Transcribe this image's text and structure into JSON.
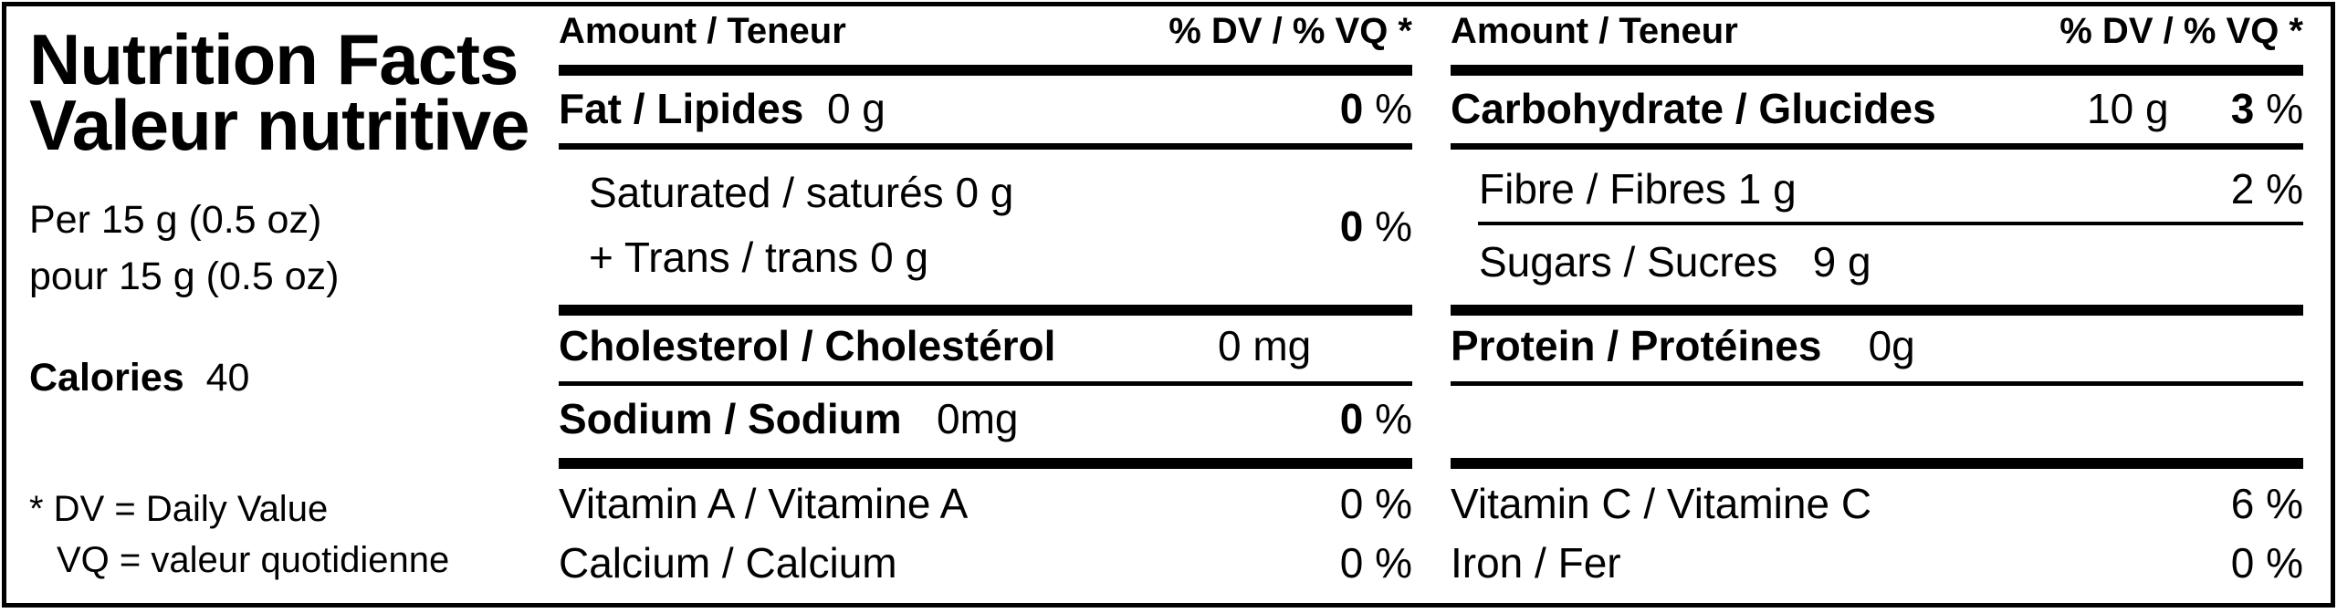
{
  "title_en": "Nutrition Facts",
  "title_fr": "Valeur nutritive",
  "serving_en": "Per 15  g  (0.5 oz)",
  "serving_fr": "pour 15  g  (0.5 oz)",
  "calories_label": "Calories",
  "calories_value": "40",
  "footnote_dv": "* DV = Daily Value",
  "footnote_vq": "VQ = valeur quotidienne",
  "percent_sign": "%",
  "left_column": {
    "header_amount": "Amount / Teneur",
    "header_dv": "% DV / % VQ *",
    "fat": {
      "label": "Fat / Lipides",
      "amount": "0 g",
      "dv": "0"
    },
    "saturated": {
      "label": "Saturated / saturés 0 g"
    },
    "trans": {
      "label": "+ Trans / trans 0 g",
      "dv": "0"
    },
    "cholesterol": {
      "label": "Cholesterol / Cholestérol",
      "amount": "0 mg"
    },
    "sodium": {
      "label": "Sodium / Sodium",
      "amount": "0mg",
      "dv": "0"
    },
    "vitamin_a": {
      "label": "Vitamin A / Vitamine A",
      "dv": "0 %"
    },
    "calcium": {
      "label": "Calcium / Calcium",
      "dv": "0 %"
    }
  },
  "right_column": {
    "header_amount": "Amount / Teneur",
    "header_dv": "% DV / % VQ *",
    "carbohydrate": {
      "label": "Carbohydrate / Glucides",
      "amount": "10 g",
      "dv": "3"
    },
    "fibre": {
      "label": "Fibre / Fibres 1 g",
      "dv": "2 %"
    },
    "sugars": {
      "label": "Sugars / Sucres",
      "amount": "9 g"
    },
    "protein": {
      "label": "Protein / Protéines",
      "amount": "0g"
    },
    "vitamin_c": {
      "label": "Vitamin C / Vitamine C",
      "dv": "6 %"
    },
    "iron": {
      "label": "Iron / Fer",
      "dv": "0 %"
    }
  }
}
